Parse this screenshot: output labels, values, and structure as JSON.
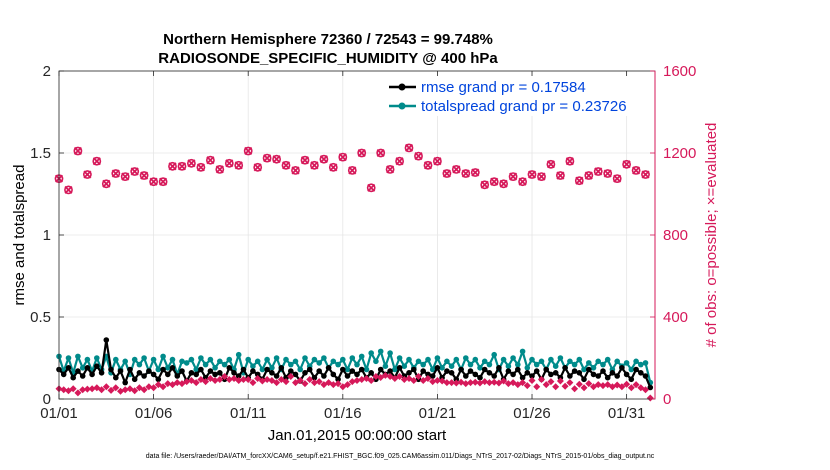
{
  "chart_data": {
    "type": "line",
    "title": "Northern Hemisphere 72360 / 72543 = 99.748%",
    "subtitle": "RADIOSONDE_SPECIFIC_HUMIDITY @ 400 hPa",
    "xlabel": "Jan.01,2015 00:00:00 start",
    "ylabel": "rmse and totalspread",
    "ylabel_right": "# of obs: o=possible; ×=evaluated",
    "footnote": "data file: /Users/raeder/DAI/ATM_forcXX/CAM6_setup/f.e21.FHIST_BGC.f09_025.CAM6assim.011/Diags_NTrS_2017-02/Diags_NTrS_2015-01/obs_diag_output.nc",
    "xlim": [
      0,
      31.5
    ],
    "ylim": [
      0,
      2
    ],
    "ylim_right": [
      0,
      1600
    ],
    "x_ticks": [
      0,
      5,
      10,
      15,
      20,
      25,
      30
    ],
    "x_tick_labels": [
      "01/01",
      "01/06",
      "01/11",
      "01/16",
      "01/21",
      "01/26",
      "01/31"
    ],
    "y_ticks": [
      0,
      0.5,
      1,
      1.5,
      2
    ],
    "y_tick_labels": [
      "0",
      "0.5",
      "1",
      "1.5",
      "2"
    ],
    "y_right_ticks": [
      0,
      400,
      800,
      1200,
      1600
    ],
    "y_right_tick_labels": [
      "0",
      "400",
      "800",
      "1200",
      "1600"
    ],
    "colors": {
      "rmse": "#000000",
      "spread": "#008b8b",
      "obs": "#d6195a"
    },
    "x_step": 0.25,
    "series": [
      {
        "name": "rmse grand pr = 0.17584",
        "color": "#000000",
        "axis": "left",
        "values": [
          0.18,
          0.15,
          0.19,
          0.13,
          0.17,
          0.14,
          0.19,
          0.15,
          0.2,
          0.16,
          0.36,
          0.18,
          0.13,
          0.17,
          0.1,
          0.18,
          0.12,
          0.16,
          0.14,
          0.17,
          0.15,
          0.12,
          0.18,
          0.15,
          0.19,
          0.14,
          0.17,
          0.11,
          0.16,
          0.15,
          0.18,
          0.13,
          0.17,
          0.15,
          0.16,
          0.12,
          0.19,
          0.16,
          0.14,
          0.18,
          0.13,
          0.17,
          0.15,
          0.12,
          0.18,
          0.16,
          0.14,
          0.19,
          0.13,
          0.17,
          0.15,
          0.11,
          0.16,
          0.18,
          0.13,
          0.17,
          0.14,
          0.19,
          0.15,
          0.12,
          0.18,
          0.14,
          0.17,
          0.15,
          0.18,
          0.13,
          0.16,
          0.12,
          0.18,
          0.15,
          0.17,
          0.13,
          0.19,
          0.14,
          0.16,
          0.18,
          0.12,
          0.17,
          0.15,
          0.14,
          0.19,
          0.13,
          0.17,
          0.16,
          0.12,
          0.18,
          0.14,
          0.17,
          0.15,
          0.13,
          0.18,
          0.16,
          0.14,
          0.19,
          0.12,
          0.17,
          0.15,
          0.18,
          0.13,
          0.16,
          0.14,
          0.17,
          0.12,
          0.18,
          0.15,
          0.16,
          0.13,
          0.19,
          0.14,
          0.17,
          0.16,
          0.12,
          0.18,
          0.15,
          0.14,
          0.17,
          0.13,
          0.16,
          0.14,
          0.19,
          0.15,
          0.12,
          0.18,
          0.16,
          0.14,
          0.07
        ]
      },
      {
        "name": "totalspread grand pr = 0.23726",
        "color": "#008b8b",
        "axis": "left",
        "values": [
          0.26,
          0.17,
          0.25,
          0.16,
          0.26,
          0.19,
          0.24,
          0.17,
          0.25,
          0.18,
          0.26,
          0.16,
          0.24,
          0.18,
          0.23,
          0.15,
          0.24,
          0.21,
          0.25,
          0.17,
          0.24,
          0.18,
          0.26,
          0.19,
          0.24,
          0.15,
          0.23,
          0.22,
          0.24,
          0.18,
          0.25,
          0.21,
          0.24,
          0.19,
          0.23,
          0.21,
          0.24,
          0.18,
          0.27,
          0.16,
          0.24,
          0.2,
          0.23,
          0.18,
          0.24,
          0.19,
          0.25,
          0.18,
          0.24,
          0.21,
          0.23,
          0.18,
          0.25,
          0.2,
          0.24,
          0.22,
          0.25,
          0.19,
          0.23,
          0.21,
          0.24,
          0.18,
          0.25,
          0.21,
          0.26,
          0.18,
          0.28,
          0.23,
          0.29,
          0.2,
          0.28,
          0.18,
          0.25,
          0.2,
          0.24,
          0.19,
          0.23,
          0.21,
          0.24,
          0.18,
          0.25,
          0.19,
          0.23,
          0.2,
          0.24,
          0.18,
          0.25,
          0.21,
          0.24,
          0.19,
          0.23,
          0.21,
          0.27,
          0.18,
          0.24,
          0.2,
          0.25,
          0.21,
          0.29,
          0.19,
          0.24,
          0.21,
          0.23,
          0.18,
          0.24,
          0.2,
          0.25,
          0.19,
          0.23,
          0.21,
          0.24,
          0.18,
          0.22,
          0.19,
          0.23,
          0.21,
          0.24,
          0.18,
          0.23,
          0.2,
          0.22,
          0.18,
          0.23,
          0.21,
          0.22,
          0.1
        ]
      },
      {
        "name": "# obs possible",
        "color": "#d6195a",
        "axis": "right",
        "x": [
          0.0,
          0.5,
          1.0,
          1.5,
          2.0,
          2.5,
          3.0,
          3.5,
          4.0,
          4.5,
          5.0,
          5.5,
          6.0,
          6.5,
          7.0,
          7.5,
          8.0,
          8.5,
          9.0,
          9.5,
          10.0,
          10.5,
          11.0,
          11.5,
          12.0,
          12.5,
          13.0,
          13.5,
          14.0,
          14.5,
          15.0,
          15.5,
          16.0,
          16.5,
          17.0,
          17.5,
          18.0,
          18.5,
          19.0,
          19.5,
          20.0,
          20.5,
          21.0,
          21.5,
          22.0,
          22.5,
          23.0,
          23.5,
          24.0,
          24.5,
          25.0,
          25.5,
          26.0,
          26.5,
          27.0,
          27.5,
          28.0,
          28.5,
          29.0,
          29.5,
          30.0,
          30.5,
          31.0
        ],
        "values": [
          1075,
          1020,
          1210,
          1095,
          1160,
          1050,
          1100,
          1085,
          1110,
          1090,
          1060,
          1060,
          1135,
          1135,
          1150,
          1130,
          1165,
          1120,
          1150,
          1140,
          1210,
          1130,
          1175,
          1170,
          1140,
          1115,
          1165,
          1140,
          1170,
          1130,
          1180,
          1115,
          1200,
          1030,
          1200,
          1120,
          1160,
          1225,
          1185,
          1140,
          1160,
          1100,
          1120,
          1100,
          1105,
          1045,
          1060,
          1050,
          1085,
          1060,
          1095,
          1085,
          1145,
          1090,
          1160,
          1065,
          1090,
          1110,
          1100,
          1075,
          1145,
          1115,
          1095
        ]
      },
      {
        "name": "# obs evaluated",
        "color": "#d6195a",
        "axis": "right",
        "values": [
          50,
          45,
          40,
          50,
          30,
          45,
          48,
          50,
          55,
          45,
          60,
          42,
          55,
          38,
          45,
          50,
          40,
          55,
          45,
          60,
          55,
          70,
          60,
          75,
          70,
          80,
          75,
          85,
          90,
          80,
          95,
          85,
          100,
          90,
          95,
          110,
          95,
          100,
          90,
          95,
          95,
          80,
          100,
          88,
          95,
          90,
          80,
          95,
          85,
          110,
          80,
          90,
          75,
          95,
          80,
          85,
          70,
          80,
          70,
          75,
          60,
          70,
          85,
          90,
          95,
          100,
          90,
          110,
          105,
          115,
          110,
          100,
          110,
          95,
          100,
          90,
          110,
          90,
          100,
          85,
          90,
          88,
          80,
          80,
          78,
          82,
          75,
          80,
          82,
          78,
          85,
          80,
          82,
          78,
          88,
          75,
          80,
          70,
          80,
          65,
          90,
          60,
          95,
          70,
          85,
          60,
          88,
          62,
          80,
          50,
          72,
          55,
          75,
          60,
          70,
          65,
          70,
          60,
          68,
          60,
          72,
          55,
          70,
          55,
          45,
          5
        ]
      }
    ]
  }
}
